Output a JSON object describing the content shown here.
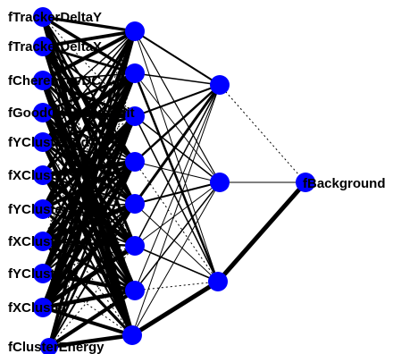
{
  "diagram": {
    "node_color": "#0000ff",
    "edge_color": "#000000",
    "layers": [
      {
        "name": "input",
        "nodes": [
          "fTrackerDeltaY",
          "fTrackerDeltaX",
          "fCherenkovDC",
          "fGoodCherenkovHit",
          "fYClusterStd",
          "fXClusterStd",
          "fYClusterSigma",
          "fXClusterSigma",
          "fYCluster",
          "fXCluster",
          "fClusterEnergy"
        ]
      },
      {
        "name": "hidden1",
        "nodes": [
          "",
          "",
          "",
          "",
          "",
          "",
          "",
          ""
        ]
      },
      {
        "name": "hidden2",
        "nodes": [
          "",
          "",
          ""
        ]
      },
      {
        "name": "output",
        "nodes": [
          "fBackground"
        ]
      }
    ],
    "edges_h1_h2": [
      {
        "from": 0,
        "to": 0,
        "weight": 2.0,
        "style": "solid"
      },
      {
        "from": 0,
        "to": 1,
        "weight": 1.2,
        "style": "solid"
      },
      {
        "from": 0,
        "to": 2,
        "weight": 1.0,
        "style": "solid"
      },
      {
        "from": 1,
        "to": 0,
        "weight": 1.5,
        "style": "solid"
      },
      {
        "from": 1,
        "to": 1,
        "weight": 1.0,
        "style": "solid"
      },
      {
        "from": 1,
        "to": 2,
        "weight": 2.5,
        "style": "solid"
      },
      {
        "from": 2,
        "to": 0,
        "weight": 2.0,
        "style": "solid"
      },
      {
        "from": 2,
        "to": 1,
        "weight": 1.5,
        "style": "solid"
      },
      {
        "from": 2,
        "to": 2,
        "weight": 1.5,
        "style": "solid"
      },
      {
        "from": 3,
        "to": 0,
        "weight": 2.5,
        "style": "solid"
      },
      {
        "from": 3,
        "to": 1,
        "weight": 1.0,
        "style": "solid"
      },
      {
        "from": 3,
        "to": 2,
        "weight": 1.0,
        "style": "dotted"
      },
      {
        "from": 4,
        "to": 0,
        "weight": 3.0,
        "style": "solid"
      },
      {
        "from": 4,
        "to": 1,
        "weight": 2.0,
        "style": "solid"
      },
      {
        "from": 4,
        "to": 2,
        "weight": 1.0,
        "style": "solid"
      },
      {
        "from": 5,
        "to": 0,
        "weight": 1.5,
        "style": "solid"
      },
      {
        "from": 5,
        "to": 1,
        "weight": 1.0,
        "style": "solid"
      },
      {
        "from": 5,
        "to": 2,
        "weight": 1.5,
        "style": "solid"
      },
      {
        "from": 6,
        "to": 0,
        "weight": 1.0,
        "style": "solid"
      },
      {
        "from": 6,
        "to": 1,
        "weight": 1.5,
        "style": "solid"
      },
      {
        "from": 6,
        "to": 2,
        "weight": 1.0,
        "style": "dotted"
      },
      {
        "from": 7,
        "to": 0,
        "weight": 1.0,
        "style": "solid"
      },
      {
        "from": 7,
        "to": 1,
        "weight": 1.0,
        "style": "solid"
      },
      {
        "from": 7,
        "to": 2,
        "weight": 5.0,
        "style": "solid"
      }
    ],
    "edges_h2_out": [
      {
        "from": 0,
        "weight": 1.0,
        "style": "dotted"
      },
      {
        "from": 1,
        "weight": 1.0,
        "style": "solid"
      },
      {
        "from": 2,
        "weight": 5.0,
        "style": "solid"
      }
    ]
  }
}
